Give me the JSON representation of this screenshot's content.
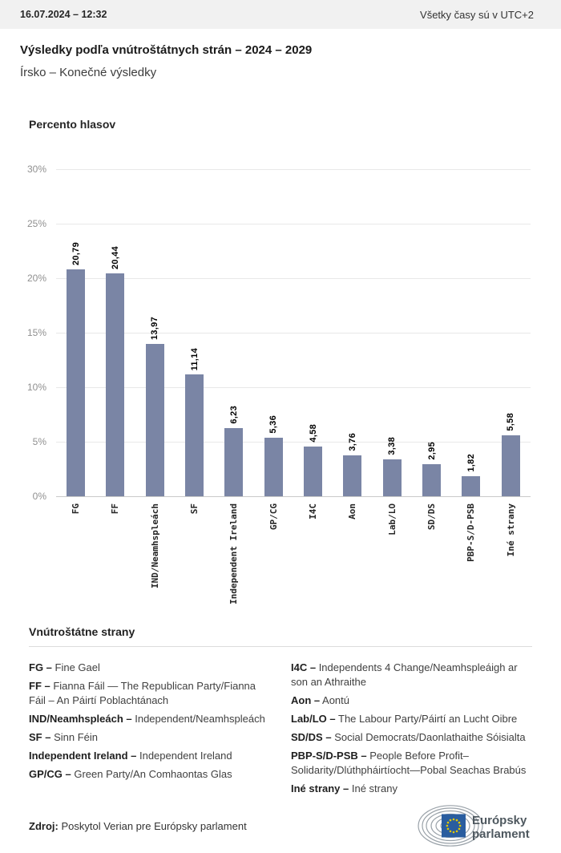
{
  "header": {
    "date": "16.07.2024 – 12:32",
    "timezone_note": "Všetky časy sú v UTC+2"
  },
  "title": "Výsledky podľa vnútroštátnych strán – 2024 – 2029",
  "subtitle": "Írsko – Konečné výsledky",
  "chart_data": {
    "type": "bar",
    "title": "Percento hlasov",
    "xlabel": "",
    "ylabel": "Percento hlasov",
    "ylim": [
      0,
      30
    ],
    "yticks": [
      "0%",
      "5%",
      "10%",
      "15%",
      "20%",
      "25%",
      "30%"
    ],
    "grid": true,
    "legend_position": "none",
    "bar_color": "#7a85a5",
    "categories": [
      "FG",
      "FF",
      "IND/Neamhspleách",
      "SF",
      "Independent Ireland",
      "GP/CG",
      "I4C",
      "Aon",
      "Lab/LO",
      "SD/DS",
      "PBP-S/D-PSB",
      "Iné strany"
    ],
    "values": [
      20.79,
      20.44,
      13.97,
      11.14,
      6.23,
      5.36,
      4.58,
      3.76,
      3.38,
      2.95,
      1.82,
      5.58
    ],
    "value_labels": [
      "20,79",
      "20,44",
      "13,97",
      "11,14",
      "6,23",
      "5,36",
      "4,58",
      "3,76",
      "3,38",
      "2,95",
      "1,82",
      "5,58"
    ]
  },
  "legend": {
    "heading": "Vnútroštátne strany",
    "columns": [
      [
        {
          "abbr": "FG –",
          "name": "Fine Gael"
        },
        {
          "abbr": "FF –",
          "name": "Fianna Fáil — The Republican Party/Fianna Fáil – An Páirtí Poblachtánach"
        },
        {
          "abbr": "IND/Neamhspleách –",
          "name": "Independent/Neamhspleách"
        },
        {
          "abbr": "SF –",
          "name": "Sinn Féin"
        },
        {
          "abbr": "Independent Ireland –",
          "name": "Independent Ireland"
        },
        {
          "abbr": "GP/CG –",
          "name": "Green Party/An Comhaontas Glas"
        }
      ],
      [
        {
          "abbr": "I4C –",
          "name": "Independents 4 Change/Neamhspleáigh ar son an Athraithe"
        },
        {
          "abbr": "Aon –",
          "name": "Aontú"
        },
        {
          "abbr": "Lab/LO –",
          "name": "The Labour Party/Páirtí an Lucht Oibre"
        },
        {
          "abbr": "SD/DS –",
          "name": "Social Democrats/Daonlathaithe Sóisialta"
        },
        {
          "abbr": "PBP-S/D-PSB –",
          "name": "People Before Profit–Solidarity/Dlúthpháirtíocht—Pobal Seachas Brabús"
        },
        {
          "abbr": "Iné strany –",
          "name": "Iné strany"
        }
      ]
    ]
  },
  "footer": {
    "source_label": "Zdroj:",
    "source_text": "Poskytol Verian pre Európsky parlament",
    "logo_line1": "Európsky",
    "logo_line2": "parlament"
  }
}
